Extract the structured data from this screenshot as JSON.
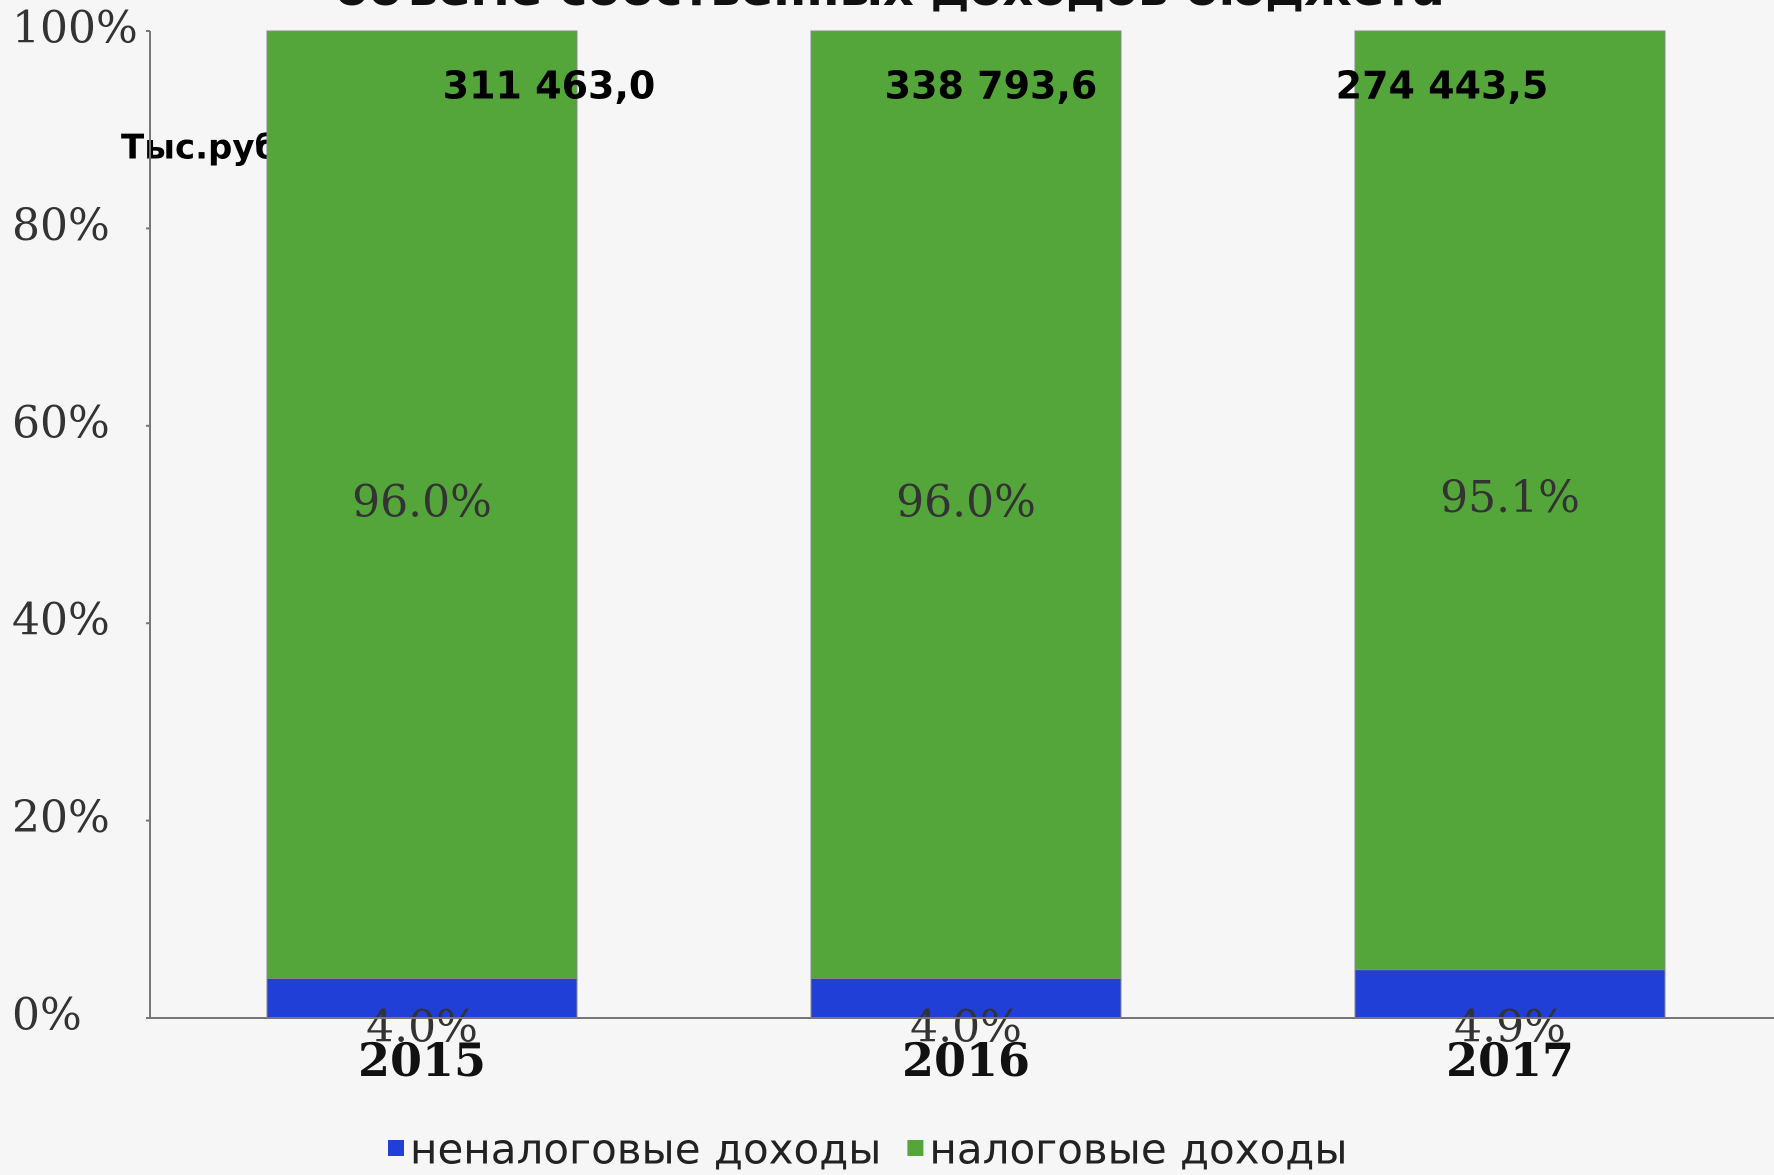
{
  "chart_data": {
    "type": "bar",
    "stacked": true,
    "title": "объеме собственных доходов бюджета",
    "unit_label": "Тыс.руб.",
    "categories": [
      "2015",
      "2016",
      "2017"
    ],
    "series": [
      {
        "name": "неналоговые доходы",
        "color": "#1f3fd6",
        "values": [
          4.0,
          4.0,
          4.9
        ],
        "value_labels": [
          "4.0%",
          "4.0%",
          "4.9%"
        ]
      },
      {
        "name": "налоговые доходы",
        "color": "#55a63a",
        "values": [
          96.0,
          96.0,
          95.1
        ],
        "value_labels": [
          "96.0%",
          "96.0%",
          "95.1%"
        ]
      }
    ],
    "annotations": [
      "311 463,0",
      "338 793,6",
      "274 443,5"
    ],
    "ylim": [
      0,
      100
    ],
    "yticks": [
      {
        "value": 0,
        "label": "0%"
      },
      {
        "value": 20,
        "label": "20%"
      },
      {
        "value": 40,
        "label": "40%"
      },
      {
        "value": 60,
        "label": "60%"
      },
      {
        "value": 80,
        "label": "80%"
      },
      {
        "value": 100,
        "label": "100%"
      }
    ],
    "grid": false
  }
}
